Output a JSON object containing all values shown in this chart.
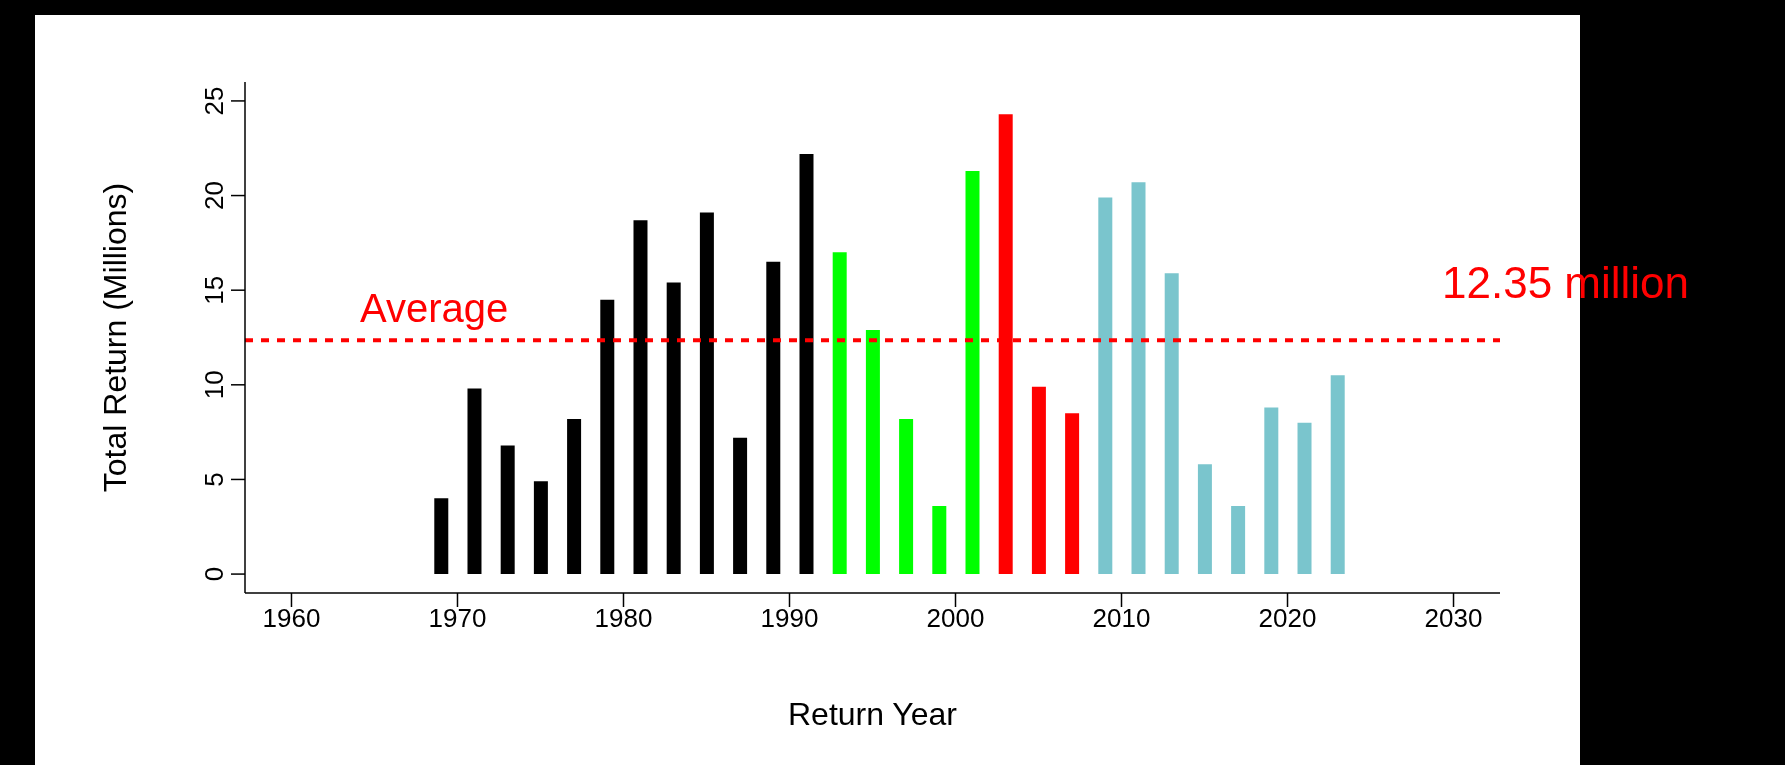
{
  "chart_data": {
    "type": "bar",
    "xlabel": "Return Year",
    "ylabel": "Total Return (Millions)",
    "x": [
      1969,
      1971,
      1973,
      1975,
      1977,
      1979,
      1981,
      1983,
      1985,
      1987,
      1989,
      1991,
      1993,
      1995,
      1997,
      1999,
      2001,
      2003,
      2005,
      2007,
      2009,
      2011,
      2013,
      2015,
      2017,
      2019,
      2021,
      2023
    ],
    "values": [
      4.0,
      9.8,
      6.8,
      4.9,
      8.2,
      14.5,
      18.7,
      15.4,
      19.1,
      7.2,
      16.5,
      22.2,
      17.0,
      12.9,
      8.2,
      3.6,
      21.3,
      24.3,
      9.9,
      8.5,
      19.9,
      20.7,
      15.9,
      5.8,
      3.6,
      8.8,
      8.0,
      10.5
    ],
    "colors": [
      "#000000",
      "#000000",
      "#000000",
      "#000000",
      "#000000",
      "#000000",
      "#000000",
      "#000000",
      "#000000",
      "#000000",
      "#000000",
      "#000000",
      "#00ff00",
      "#00ff00",
      "#00ff00",
      "#00ff00",
      "#00ff00",
      "#ff0000",
      "#ff0000",
      "#ff0000",
      "#7ac5cd",
      "#7ac5cd",
      "#7ac5cd",
      "#7ac5cd",
      "#7ac5cd",
      "#7ac5cd",
      "#7ac5cd",
      "#7ac5cd"
    ],
    "xlim": [
      1957.2,
      2032.8
    ],
    "xticks": [
      1960,
      1970,
      1980,
      1990,
      2000,
      2010,
      2020,
      2030
    ],
    "ylim": [
      -1,
      26
    ],
    "yticks": [
      0,
      5,
      10,
      15,
      20,
      25
    ],
    "ref_lines": [
      {
        "axis": "y",
        "value": 12.35,
        "label": "Average",
        "color": "#ff0000",
        "line_style": "dashed"
      }
    ],
    "annotations": [
      "12.35 million"
    ],
    "grid": false,
    "legend": false
  }
}
